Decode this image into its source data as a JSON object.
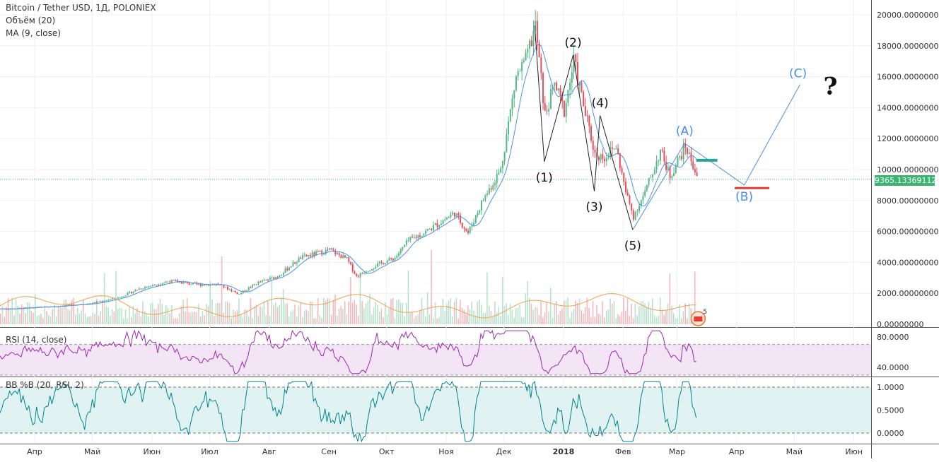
{
  "header": {
    "title": "Bitcoin / Tether USD, 1Д, POLONIEX",
    "volume_label": "Объём (20)",
    "ma_label": "MA (9, close)"
  },
  "current_price": "9365.13369112",
  "rsi_label": "RSI (14, close)",
  "bb_label": "BB %B (20, RSI, 2)",
  "badge_count": "5",
  "colors": {
    "up": "#53b987",
    "down": "#eb4d5c",
    "ma": "#4a90e2",
    "volume_ma": "#f0a04b",
    "rsi_line": "#9c27b0",
    "rsi_band": "#f3e5f5",
    "bb_line": "#00838f",
    "bb_band": "#e0f2f1",
    "wave_blue": "#4a90e2",
    "green_level": "#26a69a",
    "red_level": "#e53935"
  },
  "chart_data": [
    {
      "type": "candlestick",
      "title": "Bitcoin / Tether USD, 1Д, POLONIEX",
      "x_ticks": [
        "Апр",
        "Май",
        "Июн",
        "Июл",
        "Авг",
        "Сен",
        "Окт",
        "Ноя",
        "Дек",
        "2018",
        "Фев",
        "Мар",
        "Апр",
        "Май",
        "Июн"
      ],
      "y_ticks": [
        "20000.00000000",
        "18000.00000000",
        "16000.00000000",
        "14000.00000000",
        "12000.00000000",
        "10000.00000000",
        "8000.00000000",
        "6000.00000000",
        "4000.00000000",
        "2000.00000000",
        "0.00000000"
      ],
      "ylim": [
        0,
        20000
      ],
      "price_path": [
        [
          "2017-03-20",
          1000
        ],
        [
          "2017-04-10",
          1150
        ],
        [
          "2017-04-30",
          1350
        ],
        [
          "2017-05-15",
          1750
        ],
        [
          "2017-05-25",
          2300
        ],
        [
          "2017-06-10",
          2800
        ],
        [
          "2017-06-25",
          2550
        ],
        [
          "2017-07-05",
          2600
        ],
        [
          "2017-07-16",
          1950
        ],
        [
          "2017-07-25",
          2650
        ],
        [
          "2017-08-05",
          3100
        ],
        [
          "2017-08-17",
          4300
        ],
        [
          "2017-09-01",
          4800
        ],
        [
          "2017-09-10",
          4200
        ],
        [
          "2017-09-15",
          3100
        ],
        [
          "2017-09-25",
          3800
        ],
        [
          "2017-10-05",
          4300
        ],
        [
          "2017-10-12",
          5400
        ],
        [
          "2017-10-20",
          5900
        ],
        [
          "2017-11-05",
          7200
        ],
        [
          "2017-11-12",
          5900
        ],
        [
          "2017-11-20",
          8100
        ],
        [
          "2017-11-29",
          10000
        ],
        [
          "2017-12-07",
          16000
        ],
        [
          "2017-12-12",
          17000
        ],
        [
          "2017-12-17",
          19300
        ],
        [
          "2017-12-22",
          13500
        ],
        [
          "2017-12-27",
          15500
        ],
        [
          "2018-01-01",
          13800
        ],
        [
          "2018-01-06",
          17000
        ],
        [
          "2018-01-12",
          13600
        ],
        [
          "2018-01-17",
          11000
        ],
        [
          "2018-01-22",
          10800
        ],
        [
          "2018-01-28",
          11500
        ],
        [
          "2018-02-02",
          8500
        ],
        [
          "2018-02-06",
          7000
        ],
        [
          "2018-02-12",
          8500
        ],
        [
          "2018-02-20",
          11200
        ],
        [
          "2018-02-25",
          9600
        ],
        [
          "2018-03-05",
          11500
        ],
        [
          "2018-03-12",
          9365
        ]
      ],
      "ma": "MA (9, close)",
      "volume_ma": "Объём (20)",
      "wave_labels": [
        "(1)",
        "(2)",
        "(3)",
        "(4)",
        "(5)",
        "(A)",
        "(B)",
        "(C)",
        "?"
      ],
      "wave_points": [
        [
          "2017-12-17",
          19300
        ],
        [
          "2017-12-22",
          10500
        ],
        [
          "2018-01-06",
          17400
        ],
        [
          "2018-01-17",
          8600
        ],
        [
          "2018-01-20",
          13500
        ],
        [
          "2018-02-06",
          6100
        ],
        [
          "2018-03-05",
          11700
        ],
        [
          "2018-04-05",
          9000
        ],
        [
          "2018-05-04",
          15500
        ]
      ],
      "levels": [
        {
          "name": "green",
          "value": 10600
        },
        {
          "name": "red",
          "value": 8800
        }
      ],
      "last_price": 9365.13369112
    },
    {
      "type": "line",
      "title": "RSI (14, close)",
      "y_ticks": [
        "80.0000",
        "40.0000"
      ],
      "ylim": [
        30,
        90
      ],
      "band": [
        30,
        70
      ]
    },
    {
      "type": "line",
      "title": "BB %B (20, RSI, 2)",
      "y_ticks": [
        "1.0000",
        "0.5000",
        "0.0000"
      ],
      "ylim": [
        -0.2,
        1.2
      ],
      "band": [
        0,
        1
      ]
    }
  ]
}
